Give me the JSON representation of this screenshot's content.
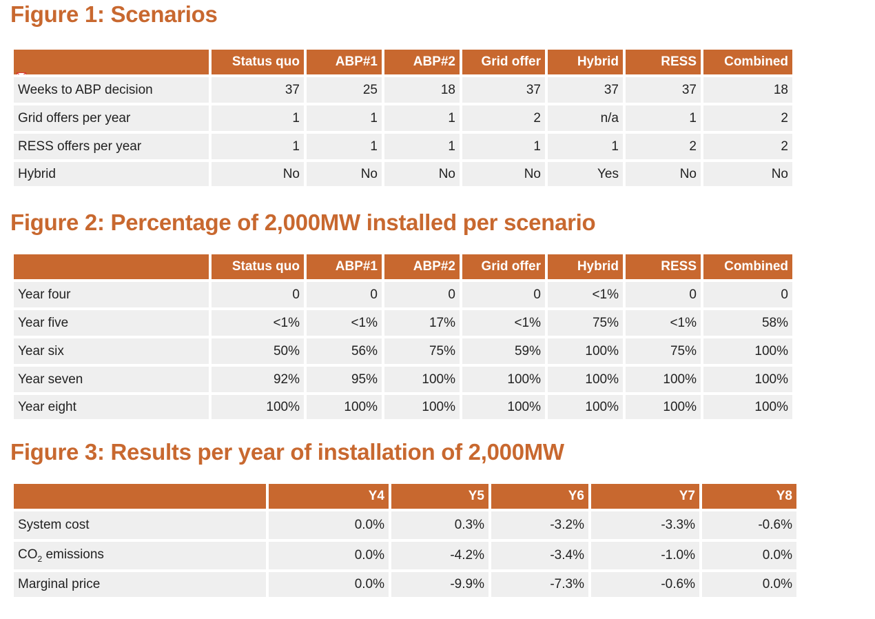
{
  "figures": [
    {
      "title": "Figure 1: Scenarios",
      "columns": [
        "",
        "Status quo",
        "ABP#1",
        "ABP#2",
        "Grid offer",
        "Hybrid",
        "RESS",
        "Combined"
      ],
      "rows": [
        {
          "label": "Weeks to ABP decision",
          "values": [
            "37",
            "25",
            "18",
            "37",
            "37",
            "37",
            "18"
          ]
        },
        {
          "label": "Grid offers per year",
          "values": [
            "1",
            "1",
            "1",
            "2",
            "n/a",
            "1",
            "2"
          ]
        },
        {
          "label": "RESS offers per year",
          "values": [
            "1",
            "1",
            "1",
            "1",
            "1",
            "2",
            "2"
          ]
        },
        {
          "label": "Hybrid",
          "values": [
            "No",
            "No",
            "No",
            "No",
            "Yes",
            "No",
            "No"
          ]
        }
      ]
    },
    {
      "title": "Figure 2: Percentage of 2,000MW installed per scenario",
      "columns": [
        "",
        "Status quo",
        "ABP#1",
        "ABP#2",
        "Grid offer",
        "Hybrid",
        "RESS",
        "Combined"
      ],
      "rows": [
        {
          "label": "Year four",
          "values": [
            "0",
            "0",
            "0",
            "0",
            "<1%",
            "0",
            "0"
          ]
        },
        {
          "label": "Year five",
          "values": [
            "<1%",
            "<1%",
            "17%",
            "<1%",
            "75%",
            "<1%",
            "58%"
          ]
        },
        {
          "label": "Year six",
          "values": [
            "50%",
            "56%",
            "75%",
            "59%",
            "100%",
            "75%",
            "100%"
          ]
        },
        {
          "label": "Year seven",
          "values": [
            "92%",
            "95%",
            "100%",
            "100%",
            "100%",
            "100%",
            "100%"
          ]
        },
        {
          "label": "Year eight",
          "values": [
            "100%",
            "100%",
            "100%",
            "100%",
            "100%",
            "100%",
            "100%"
          ]
        }
      ]
    },
    {
      "title": "Figure 3: Results per year of installation of 2,000MW",
      "columns": [
        "",
        "Y4",
        "Y5",
        "Y6",
        "Y7",
        "Y8"
      ],
      "rows": [
        {
          "label": "System cost",
          "values": [
            "0.0%",
            "0.3%",
            "-3.2%",
            "-3.3%",
            "-0.6%"
          ]
        },
        {
          "label_main": "CO",
          "label_sub": "2",
          "label_tail": " emissions",
          "values": [
            "0.0%",
            "-4.2%",
            "-3.4%",
            "-1.0%",
            "0.0%"
          ]
        },
        {
          "label": "Marginal price",
          "values": [
            "0.0%",
            "-9.9%",
            "-7.3%",
            "-0.6%",
            "0.0%"
          ]
        }
      ]
    }
  ],
  "colors": {
    "accent": "#c8682f",
    "cell_bg": "#efefef",
    "header_text": "#ffffff"
  },
  "icons": {
    "header_corner": "collapse-marker-icon"
  }
}
